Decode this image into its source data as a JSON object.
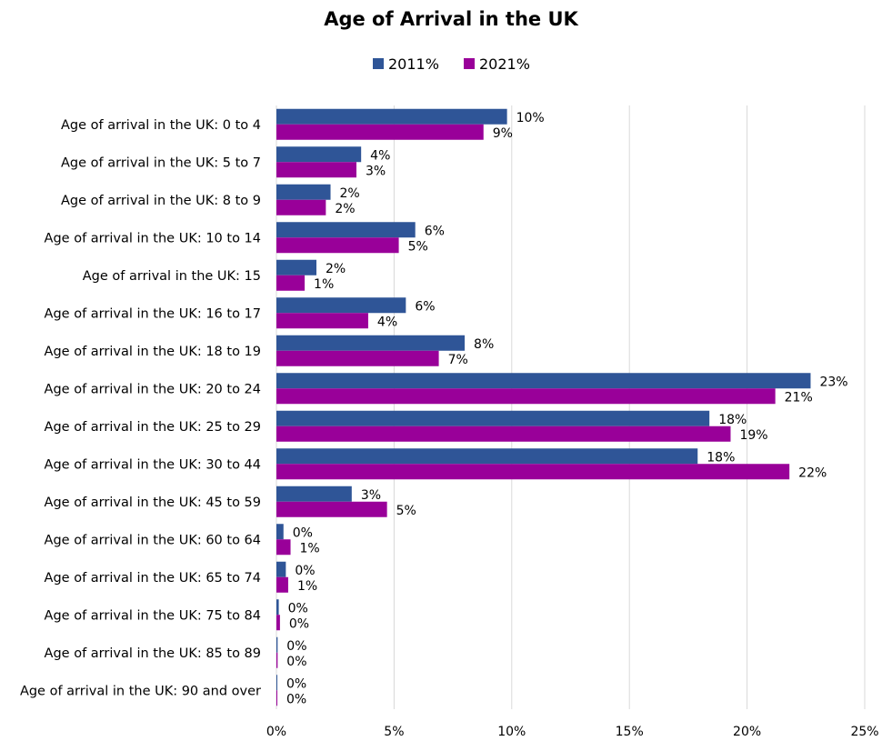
{
  "chart_data": {
    "type": "bar",
    "orientation": "horizontal",
    "title": "Age of Arrival in the UK",
    "xlabel": "",
    "ylabel": "",
    "xlim": [
      0,
      25
    ],
    "x_ticks": [
      "0%",
      "5%",
      "10%",
      "15%",
      "20%",
      "25%"
    ],
    "grid": true,
    "legend_position": "top-center",
    "categories": [
      "Age of arrival in the UK: 0 to 4",
      "Age of arrival in the UK: 5 to 7",
      "Age of arrival in the UK: 8 to 9",
      "Age of arrival in the UK: 10 to 14",
      "Age of arrival in the UK: 15",
      "Age of arrival in the UK: 16 to 17",
      "Age of arrival in the UK: 18 to 19",
      "Age of arrival in the UK: 20 to 24",
      "Age of arrival in the UK: 25 to 29",
      "Age of arrival in the UK: 30 to 44",
      "Age of arrival in the UK: 45 to 59",
      "Age of arrival in the UK: 60 to 64",
      "Age of arrival in the UK: 65 to 74",
      "Age of arrival in the UK: 75 to 84",
      "Age of arrival in the UK: 85 to 89",
      "Age of arrival in the UK: 90 and over"
    ],
    "series": [
      {
        "name": "2011%",
        "color": "#2f5597",
        "values": [
          9.8,
          3.6,
          2.3,
          5.9,
          1.7,
          5.5,
          8.0,
          22.7,
          18.4,
          17.9,
          3.2,
          0.3,
          0.4,
          0.1,
          0.05,
          0.03
        ],
        "labels": [
          "10%",
          "4%",
          "2%",
          "6%",
          "2%",
          "6%",
          "8%",
          "23%",
          "18%",
          "18%",
          "3%",
          "0%",
          "0%",
          "0%",
          "0%",
          "0%"
        ]
      },
      {
        "name": "2021%",
        "color": "#990099",
        "values": [
          8.8,
          3.4,
          2.1,
          5.2,
          1.2,
          3.9,
          6.9,
          21.2,
          19.3,
          21.8,
          4.7,
          0.6,
          0.5,
          0.15,
          0.05,
          0.03
        ],
        "labels": [
          "9%",
          "3%",
          "2%",
          "5%",
          "1%",
          "4%",
          "7%",
          "21%",
          "19%",
          "22%",
          "5%",
          "1%",
          "1%",
          "0%",
          "0%",
          "0%"
        ]
      }
    ]
  }
}
